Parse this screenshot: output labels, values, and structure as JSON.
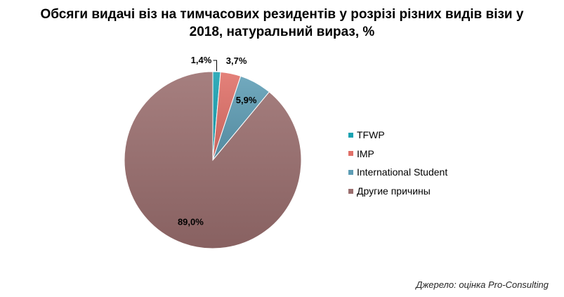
{
  "chart_data": {
    "type": "pie",
    "title_lines": [
      "Обсяги видачі віз на тимчасових резидентів у розрізі різних видів візи у",
      "2018, натуральний вираз, %"
    ],
    "categories": [
      "TFWP",
      "IMP",
      "International Student",
      "Другие причины"
    ],
    "values": [
      1.4,
      3.7,
      5.9,
      89.0
    ],
    "value_labels": [
      "1,4%",
      "3,7%",
      "5,9%",
      "89,0%"
    ],
    "colors": [
      "#18a2b2",
      "#e07068",
      "#5e9db5",
      "#9a6e6e"
    ],
    "start_angle_deg": 0,
    "direction": "clockwise",
    "legend_position": "right"
  },
  "source": "Джерело: оцінка Pro-Consulting"
}
